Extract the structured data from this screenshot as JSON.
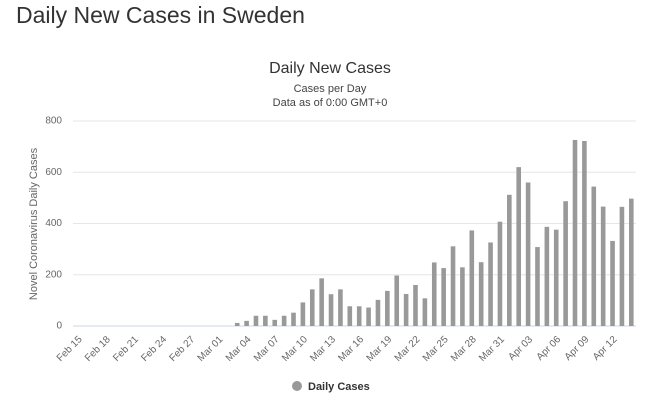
{
  "heading": "Daily New Cases in Sweden",
  "chart_data": {
    "type": "bar",
    "title": "Daily New Cases",
    "subtitle": [
      "Cases per Day",
      "Data as of 0:00 GMT+0"
    ],
    "y_label": "Novel Coronavirus Daily Cases",
    "categories": [
      "Feb 15",
      null,
      null,
      "Feb 18",
      null,
      null,
      "Feb 21",
      null,
      null,
      "Feb 24",
      null,
      null,
      "Feb 27",
      null,
      null,
      "Mar 01",
      null,
      null,
      "Mar 04",
      null,
      null,
      "Mar 07",
      null,
      null,
      "Mar 10",
      null,
      null,
      "Mar 13",
      null,
      null,
      "Mar 16",
      null,
      null,
      "Mar 19",
      null,
      null,
      "Mar 22",
      null,
      null,
      "Mar 25",
      null,
      null,
      "Mar 28",
      null,
      null,
      "Mar 31",
      null,
      null,
      "Apr 03",
      null,
      null,
      "Apr 06",
      null,
      null,
      "Apr 09",
      null,
      null,
      "Apr 12",
      null,
      null
    ],
    "series": [
      {
        "name": "Daily Cases",
        "color": "#999999",
        "values": [
          0,
          0,
          0,
          0,
          0,
          0,
          0,
          0,
          0,
          0,
          0,
          0,
          0,
          0,
          0,
          0,
          0,
          12,
          20,
          40,
          40,
          24,
          40,
          52,
          92,
          143,
          186,
          124,
          143,
          77,
          77,
          72,
          102,
          137,
          197,
          125,
          160,
          108,
          248,
          226,
          311,
          229,
          373,
          249,
          326,
          407,
          512,
          620,
          560,
          308,
          387,
          376,
          487,
          726,
          722,
          544,
          466,
          332,
          465,
          497
        ]
      }
    ],
    "ylim": [
      0,
      800
    ],
    "yticks": [
      0,
      200,
      400,
      600,
      800
    ],
    "grid": true
  }
}
